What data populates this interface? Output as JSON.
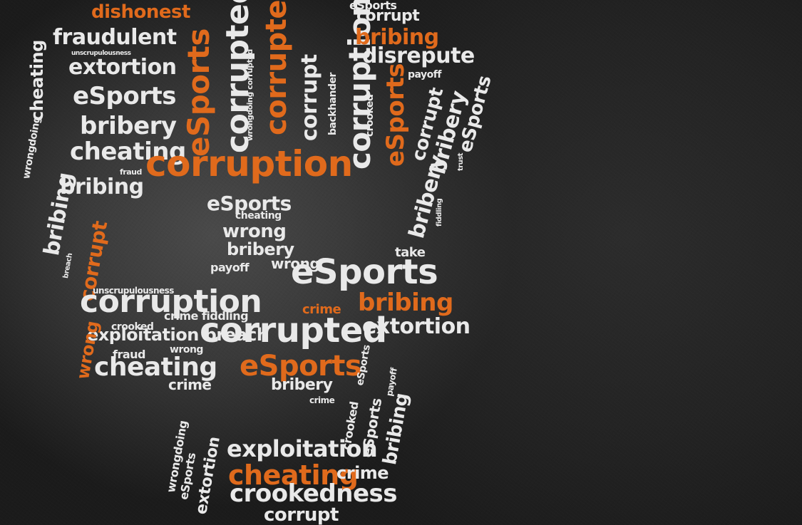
{
  "image": {
    "subject": "word cloud arranged in the shape of a skull on a dark grunge background",
    "colors": {
      "background": "#2a2a2a",
      "primary_text": "#e9e9e9",
      "accent_text": "#e06a1c"
    }
  },
  "words": [
    {
      "text": "dishonest",
      "color": "orange"
    },
    {
      "text": "fraudulent",
      "color": "white"
    },
    {
      "text": "unscrupulousness",
      "color": "white"
    },
    {
      "text": "extortion",
      "color": "white"
    },
    {
      "text": "eSports",
      "color": "white"
    },
    {
      "text": "cheating",
      "color": "white"
    },
    {
      "text": "bribery",
      "color": "white"
    },
    {
      "text": "cheating",
      "color": "white"
    },
    {
      "text": "fraud",
      "color": "white"
    },
    {
      "text": "bribing",
      "color": "white"
    },
    {
      "text": "corruption",
      "color": "orange"
    },
    {
      "text": "eSports",
      "color": "orange"
    },
    {
      "text": "corrupted",
      "color": "white"
    },
    {
      "text": "corrupted",
      "color": "orange"
    },
    {
      "text": "wrongdoing corrupted",
      "color": "white"
    },
    {
      "text": "corrupt",
      "color": "white"
    },
    {
      "text": "backhander",
      "color": "white"
    },
    {
      "text": "corruption",
      "color": "white"
    },
    {
      "text": "eSports",
      "color": "white"
    },
    {
      "text": "corrupt",
      "color": "white"
    },
    {
      "text": "bribing",
      "color": "orange"
    },
    {
      "text": "disrepute",
      "color": "white"
    },
    {
      "text": "payoff",
      "color": "white"
    },
    {
      "text": "crooked",
      "color": "white"
    },
    {
      "text": "eSports",
      "color": "orange"
    },
    {
      "text": "corrupt",
      "color": "white"
    },
    {
      "text": "bribery",
      "color": "white"
    },
    {
      "text": "eSports",
      "color": "white"
    },
    {
      "text": "trust",
      "color": "white"
    },
    {
      "text": "bribery",
      "color": "white"
    },
    {
      "text": "fiddling",
      "color": "white"
    },
    {
      "text": "wrongdoing",
      "color": "white"
    },
    {
      "text": "bribing",
      "color": "white"
    },
    {
      "text": "corrupt",
      "color": "orange"
    },
    {
      "text": "breach",
      "color": "white"
    },
    {
      "text": "eSports",
      "color": "white"
    },
    {
      "text": "cheating",
      "color": "white"
    },
    {
      "text": "wrong",
      "color": "white"
    },
    {
      "text": "bribery",
      "color": "white"
    },
    {
      "text": "payoff",
      "color": "white"
    },
    {
      "text": "wrong",
      "color": "white"
    },
    {
      "text": "eSports",
      "color": "white"
    },
    {
      "text": "take",
      "color": "white"
    },
    {
      "text": "bribing",
      "color": "orange"
    },
    {
      "text": "crime",
      "color": "orange"
    },
    {
      "text": "extortion",
      "color": "white"
    },
    {
      "text": "unscrupulousness",
      "color": "white"
    },
    {
      "text": "corruption",
      "color": "white"
    },
    {
      "text": "crime fiddling",
      "color": "white"
    },
    {
      "text": "crooked",
      "color": "white"
    },
    {
      "text": "exploitation breach",
      "color": "white"
    },
    {
      "text": "wrong",
      "color": "orange"
    },
    {
      "text": "corrupted",
      "color": "white"
    },
    {
      "text": "fraud",
      "color": "white"
    },
    {
      "text": "wrong",
      "color": "white"
    },
    {
      "text": "cheating",
      "color": "white"
    },
    {
      "text": "eSports",
      "color": "orange"
    },
    {
      "text": "crime",
      "color": "white"
    },
    {
      "text": "bribery",
      "color": "white"
    },
    {
      "text": "crime",
      "color": "white"
    },
    {
      "text": "wrongdoing",
      "color": "white"
    },
    {
      "text": "eSports",
      "color": "white"
    },
    {
      "text": "extortion",
      "color": "white"
    },
    {
      "text": "exploitation",
      "color": "white"
    },
    {
      "text": "cheating",
      "color": "orange"
    },
    {
      "text": "crime",
      "color": "white"
    },
    {
      "text": "crookedness",
      "color": "white"
    },
    {
      "text": "corrupt",
      "color": "white"
    },
    {
      "text": "crooked",
      "color": "white"
    },
    {
      "text": "eSports",
      "color": "white"
    },
    {
      "text": "bribing",
      "color": "white"
    },
    {
      "text": "payoff",
      "color": "white"
    },
    {
      "text": "eSports",
      "color": "white"
    }
  ]
}
